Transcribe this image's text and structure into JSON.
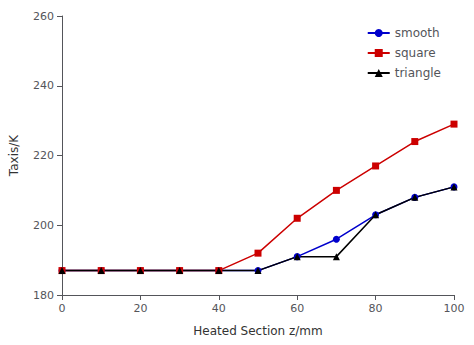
{
  "chart_data": {
    "type": "line",
    "x": [
      0,
      10,
      20,
      30,
      40,
      50,
      60,
      70,
      80,
      90,
      100
    ],
    "series": [
      {
        "name": "smooth",
        "color": "#0000cc",
        "marker": "circle",
        "values": [
          187,
          187,
          187,
          187,
          187,
          187,
          191,
          196,
          203,
          208,
          211
        ]
      },
      {
        "name": "square",
        "color": "#cc0000",
        "marker": "square",
        "values": [
          187,
          187,
          187,
          187,
          187,
          192,
          202,
          210,
          217,
          224,
          229
        ]
      },
      {
        "name": "triangle",
        "color": "#000000",
        "marker": "triangle",
        "values": [
          187,
          187,
          187,
          187,
          187,
          187,
          191,
          191,
          203,
          208,
          211
        ]
      }
    ],
    "xlabel": "Heated Section z/mm",
    "ylabel": "Taxis/K",
    "xlim": [
      0,
      100
    ],
    "xticks": [
      0,
      20,
      40,
      60,
      80,
      100
    ],
    "ylim": [
      180,
      260
    ],
    "yticks": [
      180,
      200,
      220,
      240,
      260
    ],
    "grid": false,
    "legend": "upper right"
  }
}
